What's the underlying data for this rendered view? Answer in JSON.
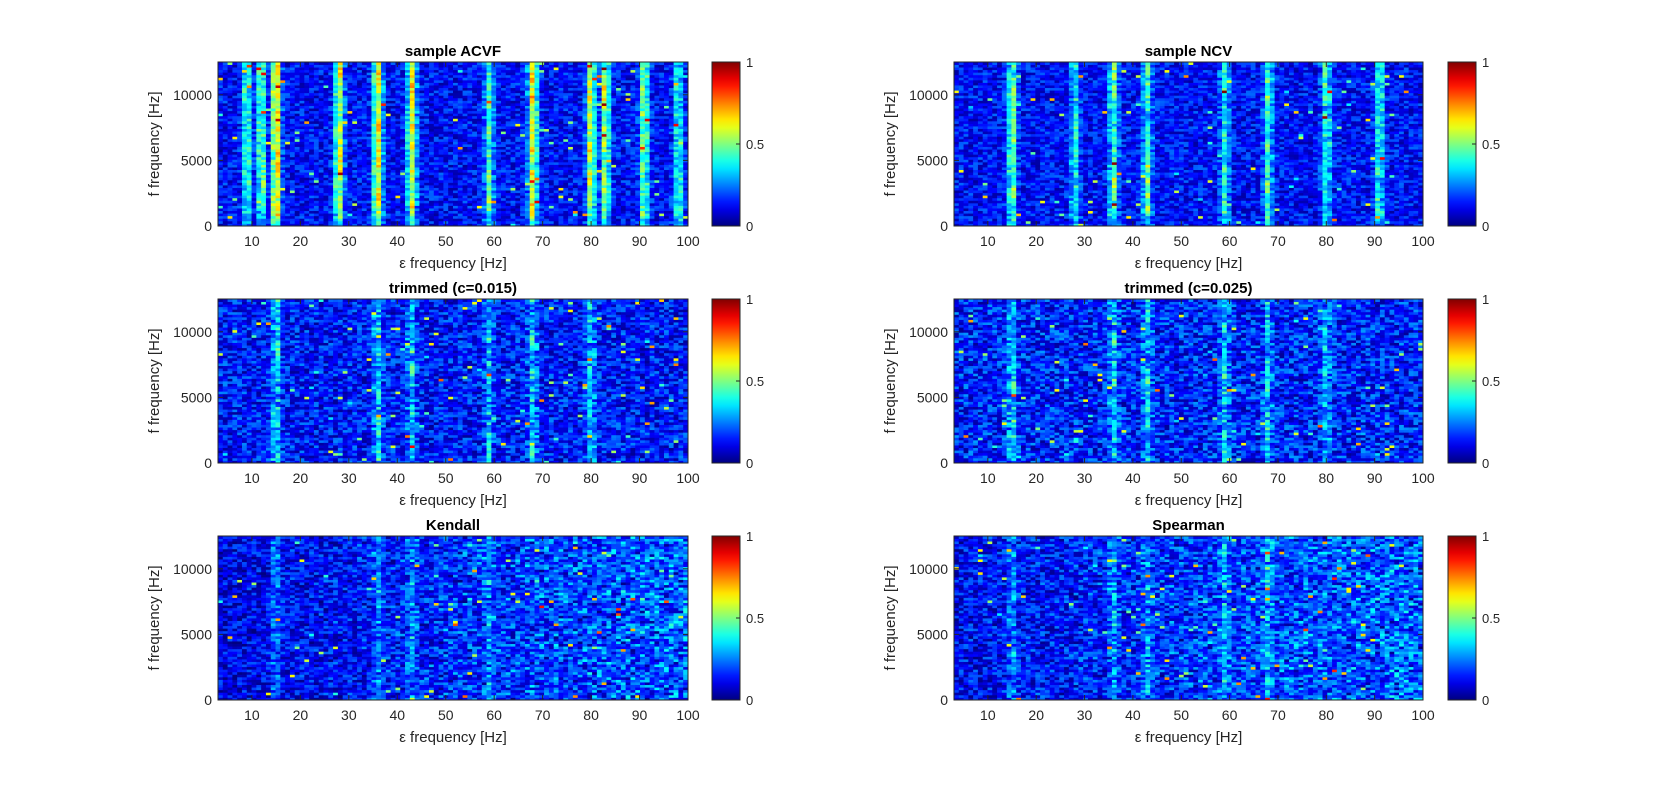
{
  "chart_data": [
    {
      "type": "heatmap",
      "title": "sample ACVF",
      "xlabel": "ε frequency [Hz]",
      "ylabel": "f frequency [Hz]",
      "xlim": [
        3,
        100
      ],
      "ylim": [
        0,
        12500
      ],
      "xticks": [
        10,
        20,
        30,
        40,
        50,
        60,
        70,
        80,
        90,
        100
      ],
      "yticks": [
        0,
        5000,
        10000
      ],
      "clim": [
        0,
        1
      ],
      "colorbar_ticks": [
        0,
        0.5,
        1
      ],
      "colormap": "jet",
      "pattern": {
        "background": 0.13,
        "noise": 0.1,
        "stripe_strength": 0.55,
        "vertical_coherence": 0.75,
        "stripes": [
          15,
          36,
          68,
          28,
          43,
          80,
          83,
          91,
          12,
          59,
          9,
          98
        ]
      }
    },
    {
      "type": "heatmap",
      "title": "sample NCV",
      "xlabel": "ε frequency [Hz]",
      "ylabel": "f frequency [Hz]",
      "xlim": [
        3,
        100
      ],
      "ylim": [
        0,
        12500
      ],
      "xticks": [
        10,
        20,
        30,
        40,
        50,
        60,
        70,
        80,
        90,
        100
      ],
      "yticks": [
        0,
        5000,
        10000
      ],
      "clim": [
        0,
        1
      ],
      "colorbar_ticks": [
        0,
        0.5,
        1
      ],
      "colormap": "jet",
      "pattern": {
        "background": 0.13,
        "noise": 0.1,
        "stripe_strength": 0.35,
        "vertical_coherence": 0.55,
        "stripes": [
          15,
          36,
          68,
          43,
          80,
          91,
          59,
          28
        ]
      }
    },
    {
      "type": "heatmap",
      "title": "trimmed (c=0.015)",
      "xlabel": "ε frequency [Hz]",
      "ylabel": "f frequency [Hz]",
      "xlim": [
        3,
        100
      ],
      "ylim": [
        0,
        12500
      ],
      "xticks": [
        10,
        20,
        30,
        40,
        50,
        60,
        70,
        80,
        90,
        100
      ],
      "yticks": [
        0,
        5000,
        10000
      ],
      "clim": [
        0,
        1
      ],
      "colorbar_ticks": [
        0,
        0.5,
        1
      ],
      "colormap": "jet",
      "pattern": {
        "background": 0.14,
        "noise": 0.12,
        "stripe_strength": 0.22,
        "vertical_coherence": 0.35,
        "stripes": [
          15,
          36,
          68,
          43,
          80,
          59
        ]
      }
    },
    {
      "type": "heatmap",
      "title": "trimmed (c=0.025)",
      "xlabel": "ε frequency [Hz]",
      "ylabel": "f frequency [Hz]",
      "xlim": [
        3,
        100
      ],
      "ylim": [
        0,
        12500
      ],
      "xticks": [
        10,
        20,
        30,
        40,
        50,
        60,
        70,
        80,
        90,
        100
      ],
      "yticks": [
        0,
        5000,
        10000
      ],
      "clim": [
        0,
        1
      ],
      "colorbar_ticks": [
        0,
        0.5,
        1
      ],
      "colormap": "jet",
      "pattern": {
        "background": 0.15,
        "noise": 0.13,
        "stripe_strength": 0.2,
        "vertical_coherence": 0.35,
        "stripes": [
          15,
          36,
          43,
          68,
          59,
          80
        ]
      }
    },
    {
      "type": "heatmap",
      "title": "Kendall",
      "xlabel": "ε frequency [Hz]",
      "ylabel": "f frequency [Hz]",
      "xlim": [
        3,
        100
      ],
      "ylim": [
        0,
        12500
      ],
      "xticks": [
        10,
        20,
        30,
        40,
        50,
        60,
        70,
        80,
        90,
        100
      ],
      "yticks": [
        0,
        5000,
        10000
      ],
      "clim": [
        0,
        1
      ],
      "colorbar_ticks": [
        0,
        0.5,
        1
      ],
      "colormap": "jet",
      "pattern": {
        "background": 0.1,
        "noise": 0.11,
        "stripe_strength": 0.12,
        "vertical_coherence": 0.2,
        "stripes": [
          15,
          36,
          43,
          59
        ],
        "ramp_right": 0.12
      }
    },
    {
      "type": "heatmap",
      "title": "Spearman",
      "xlabel": "ε frequency [Hz]",
      "ylabel": "f frequency [Hz]",
      "xlim": [
        3,
        100
      ],
      "ylim": [
        0,
        12500
      ],
      "xticks": [
        10,
        20,
        30,
        40,
        50,
        60,
        70,
        80,
        90,
        100
      ],
      "yticks": [
        0,
        5000,
        10000
      ],
      "clim": [
        0,
        1
      ],
      "colorbar_ticks": [
        0,
        0.5,
        1
      ],
      "colormap": "jet",
      "pattern": {
        "background": 0.12,
        "noise": 0.12,
        "stripe_strength": 0.14,
        "vertical_coherence": 0.25,
        "stripes": [
          15,
          36,
          43,
          59,
          68
        ],
        "ramp_right": 0.1
      }
    }
  ]
}
